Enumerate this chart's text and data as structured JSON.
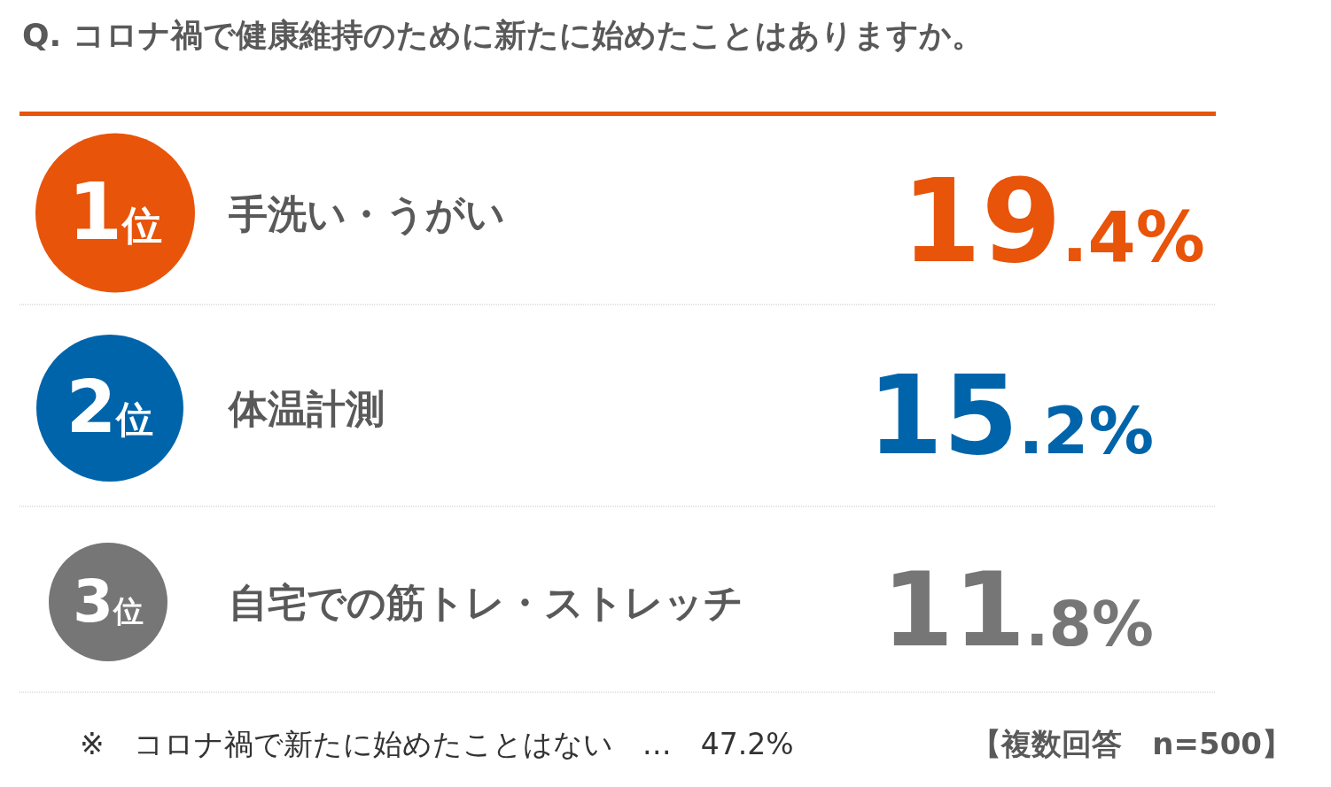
{
  "chart_data": {
    "type": "other",
    "title": "Q. コロナ禍で健康維持のために新たに始めたことはありますか。",
    "categories": [
      "手洗い・うがい",
      "体温計測",
      "自宅での筋トレ・ストレッチ"
    ],
    "values": [
      19.4,
      15.2,
      11.8
    ],
    "value_labels": [
      "19.4%",
      "15.2%",
      "11.8%"
    ],
    "colors": [
      "#e8540a",
      "#0064aa",
      "#767676"
    ],
    "annotations": [
      {
        "text": "1位",
        "x": "手洗い・うがい"
      },
      {
        "text": "2位",
        "x": "体温計測"
      },
      {
        "text": "3位",
        "x": "自宅での筋トレ・ストレッチ"
      },
      "※　コロナ禍で新たに始めたことはない　…　47.2%",
      "【複数回答　n=500】"
    ]
  }
}
